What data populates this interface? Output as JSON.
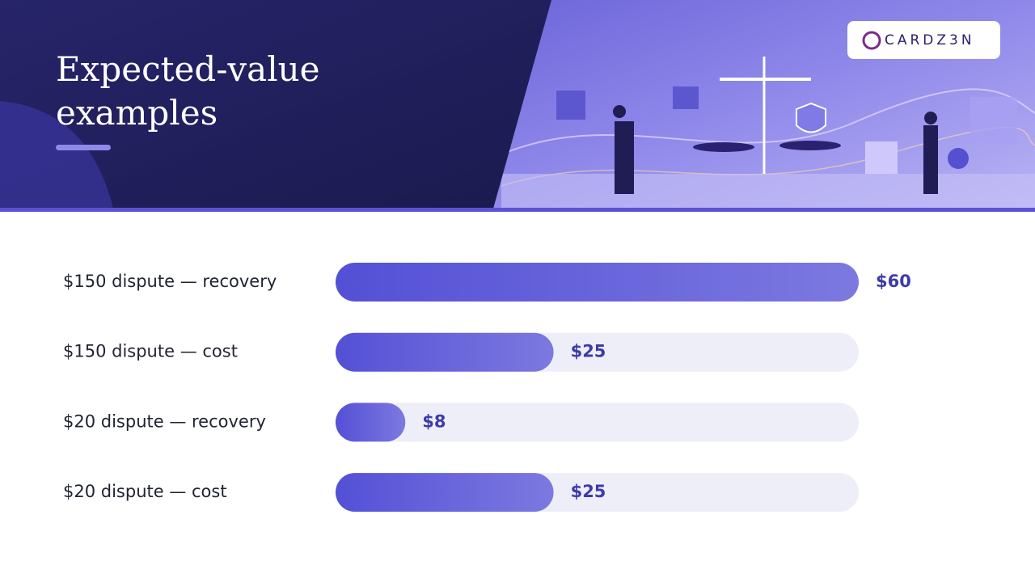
{
  "chart_data": {
    "type": "bar",
    "title": "Expected-value examples",
    "logo": "CARDZ3N",
    "categories": [
      "$150 dispute — recovery",
      "$150 dispute — cost",
      "$20 dispute — recovery",
      "$20 dispute — cost"
    ],
    "values": [
      60,
      25,
      8,
      25
    ],
    "value_labels": [
      "$60",
      "$25",
      "$8",
      "$25"
    ],
    "xlim": [
      0,
      60
    ],
    "color": "#5450d6"
  }
}
